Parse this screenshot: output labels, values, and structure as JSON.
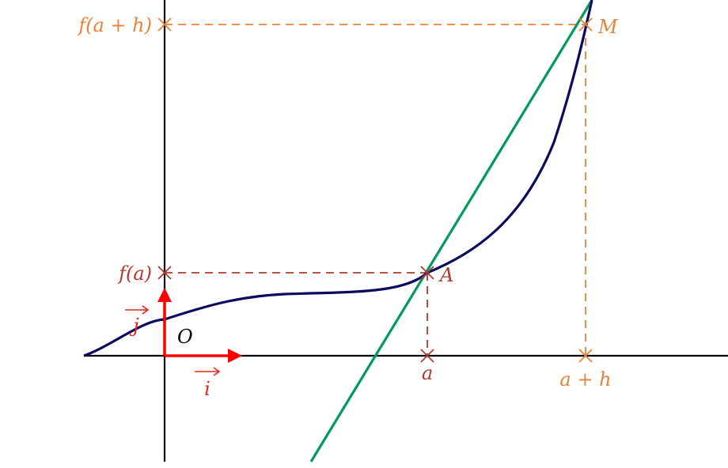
{
  "labels": {
    "f_a_plus_h": "f(a + h)",
    "f_a": "f(a)",
    "point_M": "M",
    "point_A": "A",
    "origin": "O",
    "tick_a": "a",
    "tick_a_plus_h": "a + h",
    "vector_i": "i",
    "vector_j": "j"
  },
  "colors": {
    "curve": "#0a0a5e",
    "tangent": "#009a5a",
    "point_A_guides": "#b03a2e",
    "point_M_guides": "#e8823a",
    "unit_vectors": "#ff0000",
    "axes": "#000000"
  }
}
